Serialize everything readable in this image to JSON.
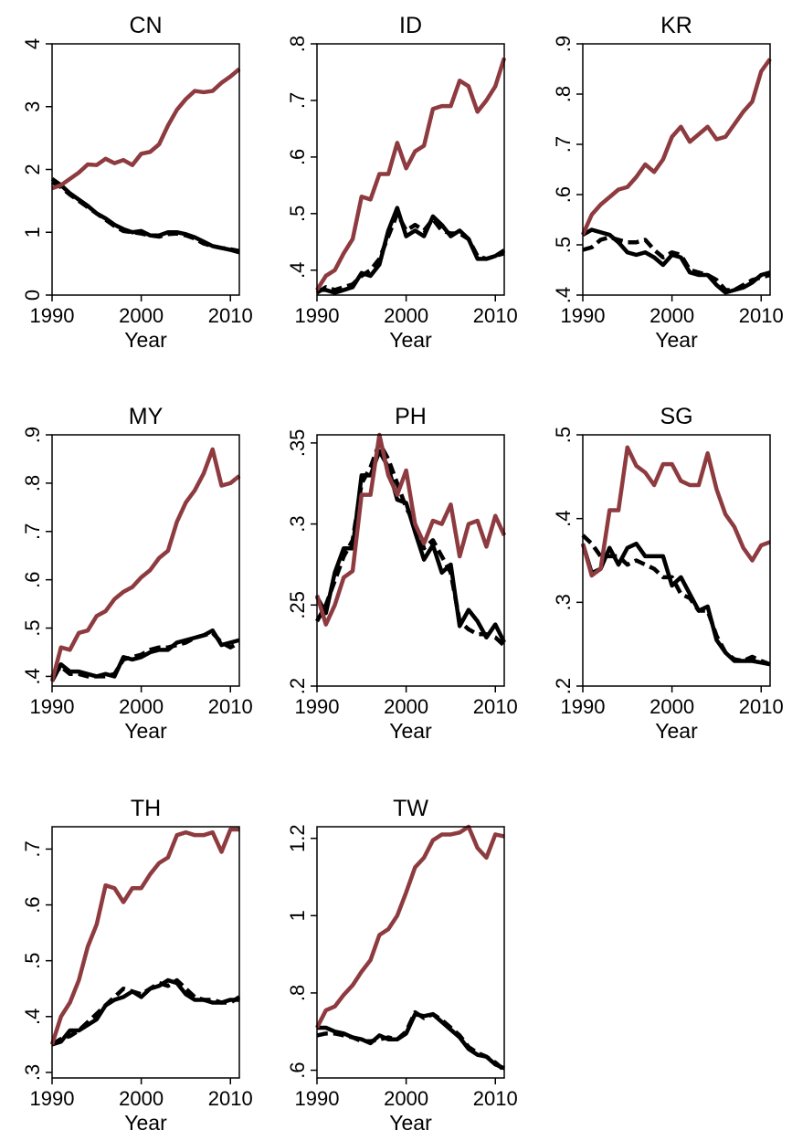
{
  "chart_data": [
    {
      "type": "line",
      "title": "CN",
      "xlabel": "Year",
      "x": [
        1990,
        1991,
        1992,
        1993,
        1994,
        1995,
        1996,
        1997,
        1998,
        1999,
        2000,
        2001,
        2002,
        2003,
        2004,
        2005,
        2006,
        2007,
        2008,
        2009,
        2010,
        2011
      ],
      "xlim": [
        1990,
        2011
      ],
      "xticks": [
        1990,
        2000,
        2010
      ],
      "ylim": [
        0,
        4
      ],
      "yticks": [
        0,
        1,
        2,
        3,
        4
      ],
      "series": [
        {
          "color": "#000000",
          "dash": false,
          "values": [
            1.85,
            1.75,
            1.62,
            1.52,
            1.42,
            1.3,
            1.22,
            1.12,
            1.05,
            1.0,
            1.02,
            0.95,
            0.95,
            1.0,
            1.0,
            0.97,
            0.92,
            0.85,
            0.78,
            0.75,
            0.72,
            0.68
          ]
        },
        {
          "color": "#000000",
          "dash": true,
          "values": [
            1.8,
            1.72,
            1.6,
            1.5,
            1.4,
            1.3,
            1.2,
            1.1,
            1.02,
            1.0,
            0.98,
            0.95,
            0.93,
            0.97,
            0.98,
            0.95,
            0.9,
            0.82,
            0.78,
            0.75,
            0.73,
            0.7
          ]
        },
        {
          "color": "#8e3b40",
          "dash": false,
          "values": [
            1.7,
            1.75,
            1.85,
            1.95,
            2.08,
            2.07,
            2.17,
            2.1,
            2.15,
            2.07,
            2.25,
            2.28,
            2.4,
            2.7,
            2.95,
            3.12,
            3.25,
            3.23,
            3.25,
            3.38,
            3.48,
            3.6
          ]
        }
      ]
    },
    {
      "type": "line",
      "title": "ID",
      "xlabel": "Year",
      "x": [
        1990,
        1991,
        1992,
        1993,
        1994,
        1995,
        1996,
        1997,
        1998,
        1999,
        2000,
        2001,
        2002,
        2003,
        2004,
        2005,
        2006,
        2007,
        2008,
        2009,
        2010,
        2011
      ],
      "xlim": [
        1990,
        2011
      ],
      "xticks": [
        1990,
        2000,
        2010
      ],
      "ylim": [
        0.356,
        0.8
      ],
      "yticks": [
        {
          "value": 0.4,
          "label": ".4"
        },
        {
          "value": 0.5,
          "label": ".5"
        },
        {
          "value": 0.6,
          "label": ".6"
        },
        {
          "value": 0.7,
          "label": ".7"
        },
        {
          "value": 0.8,
          "label": ".8"
        }
      ],
      "series": [
        {
          "color": "#000000",
          "dash": false,
          "values": [
            0.365,
            0.365,
            0.36,
            0.365,
            0.37,
            0.395,
            0.39,
            0.41,
            0.47,
            0.51,
            0.46,
            0.47,
            0.46,
            0.495,
            0.48,
            0.46,
            0.47,
            0.455,
            0.42,
            0.42,
            0.425,
            0.435
          ]
        },
        {
          "color": "#000000",
          "dash": true,
          "values": [
            0.36,
            0.37,
            0.365,
            0.37,
            0.375,
            0.39,
            0.4,
            0.42,
            0.46,
            0.5,
            0.47,
            0.48,
            0.47,
            0.49,
            0.47,
            0.465,
            0.465,
            0.455,
            0.425,
            0.42,
            0.425,
            0.43
          ]
        },
        {
          "color": "#8e3b40",
          "dash": false,
          "values": [
            0.365,
            0.39,
            0.4,
            0.43,
            0.455,
            0.53,
            0.525,
            0.57,
            0.57,
            0.625,
            0.58,
            0.61,
            0.62,
            0.685,
            0.69,
            0.69,
            0.735,
            0.725,
            0.68,
            0.7,
            0.725,
            0.775
          ]
        }
      ]
    },
    {
      "type": "line",
      "title": "KR",
      "xlabel": "Year",
      "x": [
        1990,
        1991,
        1992,
        1993,
        1994,
        1995,
        1996,
        1997,
        1998,
        1999,
        2000,
        2001,
        2002,
        2003,
        2004,
        2005,
        2006,
        2007,
        2008,
        2009,
        2010,
        2011
      ],
      "xlim": [
        1990,
        2011
      ],
      "xticks": [
        1990,
        2000,
        2010
      ],
      "ylim": [
        0.4,
        0.9
      ],
      "yticks": [
        {
          "value": 0.4,
          "label": ".4"
        },
        {
          "value": 0.5,
          "label": ".5"
        },
        {
          "value": 0.6,
          "label": ".6"
        },
        {
          "value": 0.7,
          "label": ".7"
        },
        {
          "value": 0.8,
          "label": ".8"
        },
        {
          "value": 0.9,
          "label": ".9"
        }
      ],
      "series": [
        {
          "color": "#000000",
          "dash": false,
          "values": [
            0.52,
            0.53,
            0.525,
            0.52,
            0.505,
            0.485,
            0.48,
            0.485,
            0.475,
            0.46,
            0.48,
            0.475,
            0.445,
            0.44,
            0.44,
            0.42,
            0.405,
            0.41,
            0.415,
            0.425,
            0.44,
            0.445
          ]
        },
        {
          "color": "#000000",
          "dash": true,
          "values": [
            0.49,
            0.495,
            0.51,
            0.515,
            0.51,
            0.505,
            0.505,
            0.51,
            0.49,
            0.475,
            0.485,
            0.48,
            0.45,
            0.445,
            0.44,
            0.43,
            0.41,
            0.41,
            0.42,
            0.43,
            0.435,
            0.44
          ]
        },
        {
          "color": "#8e3b40",
          "dash": false,
          "values": [
            0.52,
            0.56,
            0.58,
            0.595,
            0.61,
            0.615,
            0.635,
            0.66,
            0.645,
            0.67,
            0.715,
            0.735,
            0.705,
            0.72,
            0.735,
            0.71,
            0.715,
            0.74,
            0.765,
            0.785,
            0.845,
            0.87
          ]
        }
      ]
    },
    {
      "type": "line",
      "title": "MY",
      "xlabel": "Year",
      "x": [
        1990,
        1991,
        1992,
        1993,
        1994,
        1995,
        1996,
        1997,
        1998,
        1999,
        2000,
        2001,
        2002,
        2003,
        2004,
        2005,
        2006,
        2007,
        2008,
        2009,
        2010,
        2011
      ],
      "xlim": [
        1990,
        2011
      ],
      "xticks": [
        1990,
        2000,
        2010
      ],
      "ylim": [
        0.38,
        0.9
      ],
      "yticks": [
        {
          "value": 0.4,
          "label": ".4"
        },
        {
          "value": 0.5,
          "label": ".5"
        },
        {
          "value": 0.6,
          "label": ".6"
        },
        {
          "value": 0.7,
          "label": ".7"
        },
        {
          "value": 0.8,
          "label": ".8"
        },
        {
          "value": 0.9,
          "label": ".9"
        }
      ],
      "series": [
        {
          "color": "#000000",
          "dash": false,
          "values": [
            0.39,
            0.425,
            0.41,
            0.41,
            0.405,
            0.4,
            0.405,
            0.4,
            0.44,
            0.435,
            0.44,
            0.45,
            0.455,
            0.455,
            0.47,
            0.475,
            0.48,
            0.485,
            0.495,
            0.465,
            0.47,
            0.475
          ]
        },
        {
          "color": "#000000",
          "dash": true,
          "values": [
            0.4,
            0.42,
            0.405,
            0.405,
            0.4,
            0.4,
            0.4,
            0.405,
            0.435,
            0.44,
            0.445,
            0.455,
            0.46,
            0.46,
            0.465,
            0.47,
            0.48,
            0.485,
            0.49,
            0.47,
            0.46,
            0.47
          ]
        },
        {
          "color": "#8e3b40",
          "dash": false,
          "values": [
            0.39,
            0.46,
            0.455,
            0.49,
            0.495,
            0.525,
            0.535,
            0.56,
            0.575,
            0.585,
            0.605,
            0.62,
            0.645,
            0.66,
            0.72,
            0.76,
            0.785,
            0.82,
            0.87,
            0.795,
            0.8,
            0.815
          ]
        }
      ]
    },
    {
      "type": "line",
      "title": "PH",
      "xlabel": "Year",
      "x": [
        1990,
        1991,
        1992,
        1993,
        1994,
        1995,
        1996,
        1997,
        1998,
        1999,
        2000,
        2001,
        2002,
        2003,
        2004,
        2005,
        2006,
        2007,
        2008,
        2009,
        2010,
        2011
      ],
      "xlim": [
        1990,
        2011
      ],
      "xticks": [
        1990,
        2000,
        2010
      ],
      "ylim": [
        0.2,
        0.355
      ],
      "yticks": [
        {
          "value": 0.2,
          "label": ".2"
        },
        {
          "value": 0.25,
          "label": ".25"
        },
        {
          "value": 0.3,
          "label": ".3"
        },
        {
          "value": 0.35,
          "label": ".35"
        }
      ],
      "series": [
        {
          "color": "#000000",
          "dash": false,
          "values": [
            0.255,
            0.245,
            0.27,
            0.285,
            0.285,
            0.33,
            0.33,
            0.345,
            0.335,
            0.315,
            0.313,
            0.295,
            0.278,
            0.287,
            0.27,
            0.275,
            0.237,
            0.247,
            0.24,
            0.23,
            0.238,
            0.227
          ]
        },
        {
          "color": "#000000",
          "dash": true,
          "values": [
            0.24,
            0.25,
            0.265,
            0.28,
            0.29,
            0.325,
            0.335,
            0.35,
            0.34,
            0.325,
            0.31,
            0.3,
            0.285,
            0.29,
            0.28,
            0.27,
            0.24,
            0.235,
            0.232,
            0.232,
            0.23,
            0.225
          ]
        },
        {
          "color": "#8e3b40",
          "dash": false,
          "values": [
            0.256,
            0.238,
            0.25,
            0.267,
            0.271,
            0.318,
            0.318,
            0.355,
            0.33,
            0.318,
            0.333,
            0.3,
            0.288,
            0.302,
            0.3,
            0.312,
            0.28,
            0.3,
            0.302,
            0.286,
            0.305,
            0.293
          ]
        }
      ]
    },
    {
      "type": "line",
      "title": "SG",
      "xlabel": "Year",
      "x": [
        1990,
        1991,
        1992,
        1993,
        1994,
        1995,
        1996,
        1997,
        1998,
        1999,
        2000,
        2001,
        2002,
        2003,
        2004,
        2005,
        2006,
        2007,
        2008,
        2009,
        2010,
        2011
      ],
      "xlim": [
        1990,
        2011
      ],
      "xticks": [
        1990,
        2000,
        2010
      ],
      "ylim": [
        0.2,
        0.5
      ],
      "yticks": [
        {
          "value": 0.2,
          "label": ".2"
        },
        {
          "value": 0.3,
          "label": ".3"
        },
        {
          "value": 0.4,
          "label": ".4"
        },
        {
          "value": 0.5,
          "label": ".5"
        }
      ],
      "series": [
        {
          "color": "#000000",
          "dash": false,
          "values": [
            0.37,
            0.335,
            0.34,
            0.365,
            0.345,
            0.365,
            0.37,
            0.355,
            0.355,
            0.355,
            0.32,
            0.33,
            0.31,
            0.29,
            0.295,
            0.255,
            0.24,
            0.23,
            0.23,
            0.23,
            0.228,
            0.226
          ]
        },
        {
          "color": "#000000",
          "dash": true,
          "values": [
            0.38,
            0.37,
            0.355,
            0.355,
            0.355,
            0.345,
            0.35,
            0.345,
            0.34,
            0.33,
            0.33,
            0.31,
            0.305,
            0.29,
            0.29,
            0.26,
            0.24,
            0.232,
            0.23,
            0.235,
            0.23,
            0.226
          ]
        },
        {
          "color": "#8e3b40",
          "dash": false,
          "values": [
            0.37,
            0.332,
            0.34,
            0.41,
            0.41,
            0.485,
            0.463,
            0.455,
            0.44,
            0.465,
            0.465,
            0.445,
            0.44,
            0.44,
            0.478,
            0.435,
            0.405,
            0.39,
            0.365,
            0.35,
            0.368,
            0.372
          ]
        }
      ]
    },
    {
      "type": "line",
      "title": "TH",
      "xlabel": "Year",
      "x": [
        1990,
        1991,
        1992,
        1993,
        1994,
        1995,
        1996,
        1997,
        1998,
        1999,
        2000,
        2001,
        2002,
        2003,
        2004,
        2005,
        2006,
        2007,
        2008,
        2009,
        2010,
        2011
      ],
      "xlim": [
        1990,
        2011
      ],
      "xticks": [
        1990,
        2000,
        2010
      ],
      "ylim": [
        0.29,
        0.74
      ],
      "yticks": [
        {
          "value": 0.3,
          "label": ".3"
        },
        {
          "value": 0.4,
          "label": ".4"
        },
        {
          "value": 0.5,
          "label": ".5"
        },
        {
          "value": 0.6,
          "label": ".6"
        },
        {
          "value": 0.7,
          "label": ".7"
        }
      ],
      "series": [
        {
          "color": "#000000",
          "dash": false,
          "values": [
            0.35,
            0.355,
            0.375,
            0.375,
            0.385,
            0.395,
            0.42,
            0.43,
            0.435,
            0.445,
            0.435,
            0.45,
            0.455,
            0.465,
            0.46,
            0.44,
            0.43,
            0.43,
            0.425,
            0.425,
            0.43,
            0.43
          ]
        },
        {
          "color": "#000000",
          "dash": true,
          "values": [
            0.35,
            0.36,
            0.365,
            0.375,
            0.39,
            0.405,
            0.42,
            0.435,
            0.45,
            0.445,
            0.44,
            0.45,
            0.46,
            0.455,
            0.465,
            0.45,
            0.435,
            0.43,
            0.43,
            0.425,
            0.425,
            0.435
          ]
        },
        {
          "color": "#8e3b40",
          "dash": false,
          "values": [
            0.35,
            0.4,
            0.425,
            0.465,
            0.525,
            0.565,
            0.635,
            0.63,
            0.605,
            0.63,
            0.63,
            0.655,
            0.675,
            0.685,
            0.725,
            0.73,
            0.725,
            0.725,
            0.73,
            0.695,
            0.735,
            0.735
          ]
        }
      ]
    },
    {
      "type": "line",
      "title": "TW",
      "xlabel": "Year",
      "x": [
        1990,
        1991,
        1992,
        1993,
        1994,
        1995,
        1996,
        1997,
        1998,
        1999,
        2000,
        2001,
        2002,
        2003,
        2004,
        2005,
        2006,
        2007,
        2008,
        2009,
        2010,
        2011
      ],
      "xlim": [
        1990,
        2011
      ],
      "xticks": [
        1990,
        2000,
        2010
      ],
      "ylim": [
        0.58,
        1.23
      ],
      "yticks": [
        {
          "value": 0.6,
          "label": ".6"
        },
        {
          "value": 0.8,
          "label": ".8"
        },
        1,
        1.2
      ],
      "series": [
        {
          "color": "#000000",
          "dash": false,
          "values": [
            0.71,
            0.71,
            0.7,
            0.695,
            0.685,
            0.68,
            0.67,
            0.69,
            0.68,
            0.68,
            0.695,
            0.745,
            0.74,
            0.745,
            0.725,
            0.705,
            0.685,
            0.655,
            0.64,
            0.635,
            0.615,
            0.605
          ]
        },
        {
          "color": "#000000",
          "dash": true,
          "values": [
            0.69,
            0.695,
            0.695,
            0.69,
            0.685,
            0.675,
            0.675,
            0.68,
            0.685,
            0.68,
            0.7,
            0.75,
            0.735,
            0.745,
            0.73,
            0.71,
            0.69,
            0.66,
            0.645,
            0.635,
            0.62,
            0.6
          ]
        },
        {
          "color": "#8e3b40",
          "dash": false,
          "values": [
            0.71,
            0.755,
            0.765,
            0.795,
            0.82,
            0.855,
            0.885,
            0.95,
            0.965,
            1.0,
            1.06,
            1.125,
            1.15,
            1.195,
            1.21,
            1.21,
            1.215,
            1.23,
            1.175,
            1.15,
            1.21,
            1.205
          ]
        }
      ]
    }
  ]
}
